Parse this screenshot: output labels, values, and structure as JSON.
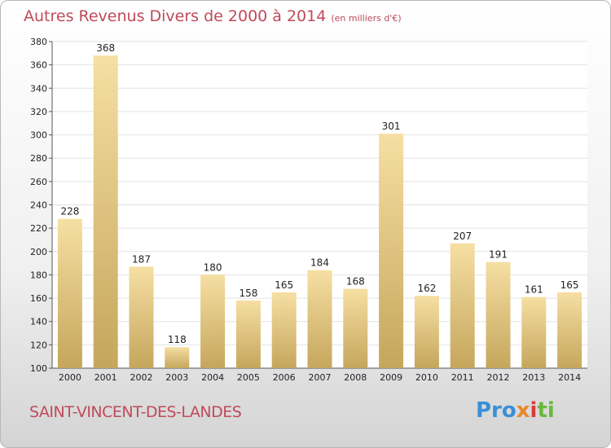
{
  "header": {
    "title": "Autres Revenus Divers de 2000 à 2014",
    "unit": "(en milliers d'€)"
  },
  "footer": {
    "city": "SAINT-VINCENT-DES-LANDES",
    "brand": [
      "Pro",
      "x",
      "i",
      "ti"
    ]
  },
  "colors": {
    "bar_light": "#f5dc9e",
    "bar_dark": "#c6a75e",
    "title": "#c04a5a",
    "grid": "#dddddd"
  },
  "chart_data": {
    "type": "bar",
    "title": "Autres Revenus Divers de 2000 à 2014",
    "categories": [
      "2000",
      "2001",
      "2002",
      "2003",
      "2004",
      "2005",
      "2006",
      "2007",
      "2008",
      "2009",
      "2010",
      "2011",
      "2012",
      "2013",
      "2014"
    ],
    "values": [
      228,
      368,
      187,
      118,
      180,
      158,
      165,
      184,
      168,
      301,
      162,
      207,
      191,
      161,
      165
    ],
    "ylim": [
      100,
      380
    ],
    "yticks": [
      100,
      120,
      140,
      160,
      180,
      200,
      220,
      240,
      260,
      280,
      300,
      320,
      340,
      360,
      380
    ],
    "grid": true,
    "data_labels": true
  }
}
